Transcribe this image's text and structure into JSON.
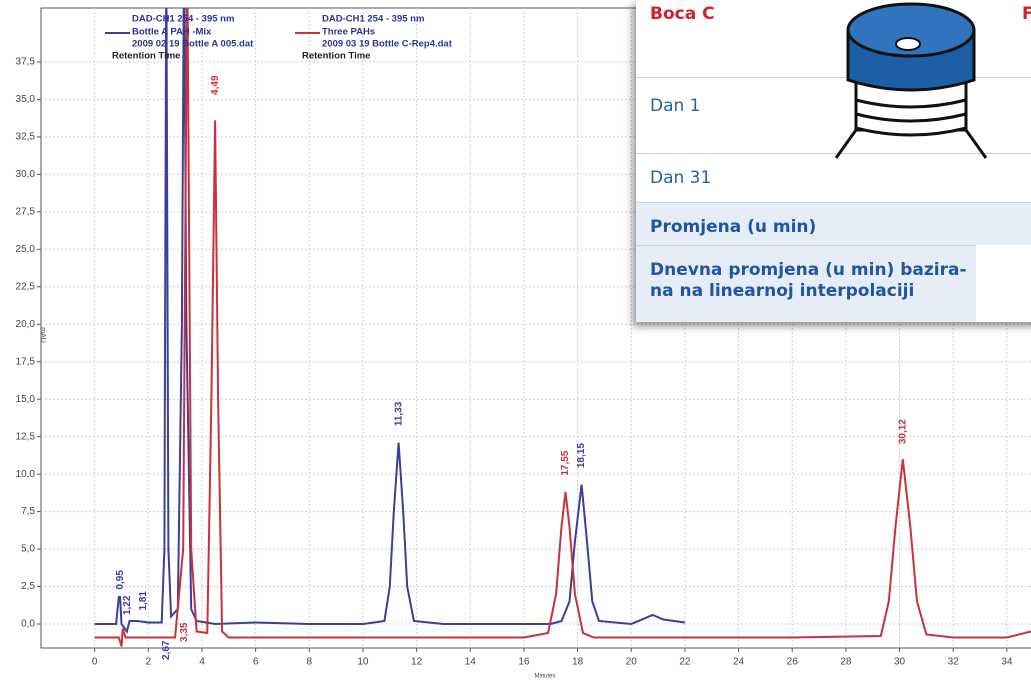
{
  "chart_data": {
    "type": "line",
    "y_label": "mAU",
    "x_label": "Minutes",
    "xlim": [
      -2,
      34.9
    ],
    "ylim": [
      -1.6,
      41.1
    ],
    "xticks": [
      0,
      2,
      4,
      6,
      8,
      10,
      12,
      14,
      16,
      18,
      20,
      22,
      24,
      26,
      28,
      30,
      32,
      34
    ],
    "yticks": [
      {
        "value": 0,
        "label": "0,0"
      },
      {
        "value": 2.5,
        "label": "2,5"
      },
      {
        "value": 5,
        "label": "5,0"
      },
      {
        "value": 7.5,
        "label": "7,5"
      },
      {
        "value": 10,
        "label": "10,0"
      },
      {
        "value": 12.5,
        "label": "12,5"
      },
      {
        "value": 15,
        "label": "15,0"
      },
      {
        "value": 17.5,
        "label": "17,5"
      },
      {
        "value": 20,
        "label": "20,0"
      },
      {
        "value": 22.5,
        "label": "22,5"
      },
      {
        "value": 25,
        "label": "25,0"
      },
      {
        "value": 27.5,
        "label": "27,5"
      },
      {
        "value": 30,
        "label": "30,0"
      },
      {
        "value": 32.5,
        "label": "32,5"
      },
      {
        "value": 35,
        "label": "35,0"
      },
      {
        "value": 37.5,
        "label": "37,5"
      }
    ],
    "grid": true,
    "series": [
      {
        "name": "Bottle A PAH -Mix",
        "color": "#3a3f9a",
        "detector": "DAD-CH1  254 - 395 nm",
        "file": "2009 02 19  Bottle A 005.dat",
        "x_mode": "Retention Time",
        "x": [
          0,
          0.8,
          0.9,
          0.95,
          1.0,
          1.2,
          1.3,
          1.6,
          2.0,
          2.5,
          2.6,
          2.67,
          2.75,
          2.85,
          3.1,
          3.25,
          3.33,
          3.42,
          3.6,
          3.8,
          4.5,
          6,
          8,
          10,
          10.8,
          11.0,
          11.15,
          11.33,
          11.5,
          11.65,
          11.9,
          13,
          15,
          17,
          17.4,
          17.7,
          17.9,
          18.15,
          18.35,
          18.55,
          18.8,
          20,
          20.8,
          21.2,
          22
        ],
        "values": [
          0,
          0,
          1.8,
          1.8,
          0,
          -0.5,
          0.2,
          0.2,
          0.1,
          0.1,
          5,
          45,
          5,
          0.5,
          1,
          20,
          45,
          20,
          1,
          0.2,
          0,
          0.1,
          0,
          0,
          0.2,
          2.5,
          7.5,
          12.1,
          7.5,
          2.5,
          0.2,
          0,
          0,
          0,
          0.2,
          1.5,
          5.5,
          9.3,
          5.5,
          1.5,
          0.2,
          0,
          0.6,
          0.3,
          0.1
        ]
      },
      {
        "name": "Three PAHs",
        "color": "#c8323a",
        "detector": "DAD-CH1  254 - 395 nm",
        "file": "2009 03 19 Bottle C-Rep4.dat",
        "x_mode": "Retention Time",
        "x": [
          0,
          0.9,
          1.0,
          1.05,
          1.15,
          3.0,
          3.3,
          3.45,
          3.6,
          3.8,
          4.2,
          4.35,
          4.49,
          4.6,
          4.75,
          5.0,
          8,
          12,
          16,
          16.9,
          17.2,
          17.4,
          17.55,
          17.7,
          17.9,
          18.2,
          18.6,
          22,
          26,
          29.3,
          29.6,
          29.85,
          30.12,
          30.4,
          30.65,
          31.0,
          32,
          34,
          34.9
        ],
        "values": [
          -0.9,
          -0.9,
          -1.5,
          -0.3,
          -0.9,
          -0.9,
          5,
          45,
          5,
          -0.5,
          -0.6,
          15,
          33.6,
          15,
          -0.5,
          -0.9,
          -0.9,
          -0.9,
          -0.9,
          -0.6,
          2,
          6.5,
          8.8,
          6.5,
          2,
          -0.6,
          -0.9,
          -0.9,
          -0.9,
          -0.8,
          1.5,
          6.5,
          11.0,
          6.5,
          1.5,
          -0.7,
          -0.9,
          -0.9,
          -0.5
        ]
      }
    ],
    "annotations": [
      {
        "text": "0,95",
        "x": 0.95,
        "y": 2.3,
        "series": 0
      },
      {
        "text": "1,22",
        "x": 1.22,
        "y": 0.6,
        "series": 0
      },
      {
        "text": "1,81",
        "x": 1.81,
        "y": 0.9,
        "series": 0
      },
      {
        "text": "2,67",
        "x": 2.67,
        "y": -2.4,
        "series": 0
      },
      {
        "text": "3,35",
        "x": 3.35,
        "y": -1.2,
        "series": 1
      },
      {
        "text": "4,49",
        "x": 4.49,
        "y": 35.3,
        "series": 1
      },
      {
        "text": "11,33",
        "x": 11.33,
        "y": 13.2,
        "series": 0
      },
      {
        "text": "17,55",
        "x": 17.55,
        "y": 9.9,
        "series": 1
      },
      {
        "text": "18,15",
        "x": 18.15,
        "y": 10.4,
        "series": 0
      },
      {
        "text": "30,12",
        "x": 30.12,
        "y": 12.0,
        "series": 1
      }
    ]
  },
  "table": {
    "header": "Boca C",
    "header_next": "F",
    "rows": [
      "Dan 1",
      "Dan 31",
      "Promjena (u min)",
      "Dnevna promjena (u min) bazira-na na linearnoj interpolaciji"
    ]
  }
}
